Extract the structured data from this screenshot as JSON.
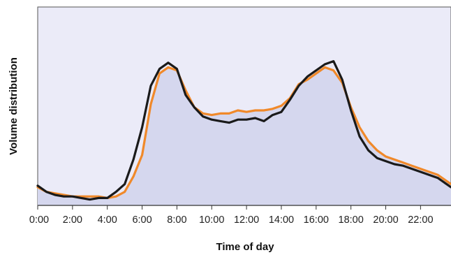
{
  "chart_data": {
    "type": "line",
    "title": "",
    "xlabel": "Time of day",
    "ylabel": "Volume distribution",
    "xlim": [
      0,
      23.75
    ],
    "ylim": [
      0,
      100
    ],
    "x_tick_labels": [
      "0:00",
      "2:00",
      "4:00",
      "6:00",
      "8:00",
      "10:00",
      "12:00",
      "14:00",
      "16:00",
      "18:00",
      "20:00",
      "22:00"
    ],
    "x_tick_values": [
      0,
      2,
      4,
      6,
      8,
      10,
      12,
      14,
      16,
      18,
      20,
      22
    ],
    "y_ticks_shown": false,
    "grid": false,
    "legend": "none",
    "plot_background": "#ebebf8",
    "area_fill_color": "#d5d7ee",
    "series": [
      {
        "color": "#f0892a",
        "filled": true,
        "x": [
          0,
          0.5,
          1,
          1.5,
          2,
          2.5,
          3,
          3.5,
          4,
          4.5,
          5,
          5.5,
          6,
          6.5,
          7,
          7.5,
          8,
          8.5,
          9,
          9.5,
          10,
          10.5,
          11,
          11.5,
          12,
          12.5,
          13,
          13.5,
          14,
          14.5,
          15,
          15.5,
          16,
          16.5,
          17,
          17.5,
          18,
          18.5,
          19,
          19.5,
          20,
          20.5,
          21,
          21.5,
          22,
          22.5,
          23,
          23.75
        ],
        "y": [
          10,
          7,
          6,
          5,
          4,
          4,
          4,
          4,
          3,
          4,
          7,
          17,
          31,
          64,
          84,
          88,
          86,
          73,
          62,
          58,
          57,
          58,
          58,
          60,
          59,
          60,
          60,
          61,
          63,
          68,
          77,
          80,
          84,
          88,
          86,
          78,
          62,
          49,
          40,
          34,
          30,
          28,
          26,
          24,
          22,
          20,
          18,
          12
        ]
      },
      {
        "color": "#1a1a1a",
        "filled": false,
        "x": [
          0,
          0.5,
          1,
          1.5,
          2,
          2.5,
          3,
          3.5,
          4,
          4.5,
          5,
          5.5,
          6,
          6.5,
          7,
          7.5,
          8,
          8.5,
          9,
          9.5,
          10,
          10.5,
          11,
          11.5,
          12,
          12.5,
          13,
          13.5,
          14,
          14.5,
          15,
          15.5,
          16,
          16.5,
          17,
          17.5,
          18,
          18.5,
          19,
          19.5,
          20,
          20.5,
          21,
          21.5,
          22,
          22.5,
          23,
          23.75
        ],
        "y": [
          11,
          7,
          5,
          4,
          4,
          3,
          2,
          3,
          3,
          7,
          12,
          28,
          49,
          76,
          87,
          91,
          87,
          70,
          62,
          56,
          54,
          53,
          52,
          54,
          54,
          55,
          53,
          57,
          59,
          67,
          76,
          82,
          86,
          90,
          92,
          80,
          60,
          43,
          34,
          29,
          27,
          25,
          24,
          22,
          20,
          18,
          16,
          10
        ]
      }
    ]
  }
}
